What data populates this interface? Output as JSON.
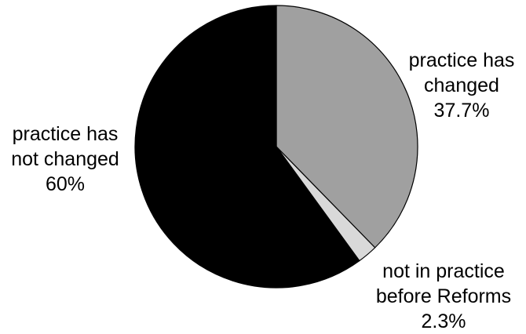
{
  "chart_data": {
    "type": "pie",
    "title": "",
    "slices": [
      {
        "label_lines": [
          "practice has",
          "changed"
        ],
        "value_label": "37.7%",
        "value": 37.7,
        "color": "#a0a0a0"
      },
      {
        "label_lines": [
          "not in practice",
          "before Reforms"
        ],
        "value_label": "2.3%",
        "value": 2.3,
        "color": "#d9d9d9"
      },
      {
        "label_lines": [
          "practice has",
          "not changed"
        ],
        "value_label": "60%",
        "value": 60,
        "color": "#000000"
      }
    ],
    "start_angle": "12 o'clock",
    "direction": "clockwise",
    "slice_outline_color": "#000000"
  }
}
